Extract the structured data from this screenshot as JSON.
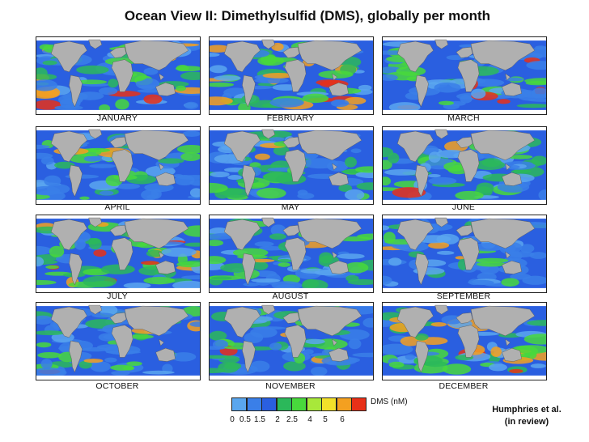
{
  "title": "Ocean View II: Dimethylsulfid (DMS), globally per month",
  "months": [
    "JANUARY",
    "FEBRUARY",
    "MARCH",
    "APRIL",
    "MAY",
    "JUNE",
    "JULY",
    "AUGUST",
    "SEPTEMBER",
    "OCTOBER",
    "NOVEMBER",
    "DECEMBER"
  ],
  "legend": {
    "title": "DMS (nM)",
    "ticks": [
      "0",
      "0.5",
      "1.5",
      "2",
      "2.5",
      "4",
      "5",
      "6"
    ],
    "colors": [
      "#5aa6ee",
      "#3a7fe8",
      "#2a5fe0",
      "#2bb85a",
      "#48d83c",
      "#a8e83a",
      "#f3e02a",
      "#f4a020",
      "#e83018"
    ]
  },
  "credit": {
    "line1": "Humphries et al.",
    "line2": "(in review)"
  },
  "map_colors": {
    "land": "#b0b0b0",
    "ice": "#ffffff",
    "ocean": "#2a5fe0"
  }
}
